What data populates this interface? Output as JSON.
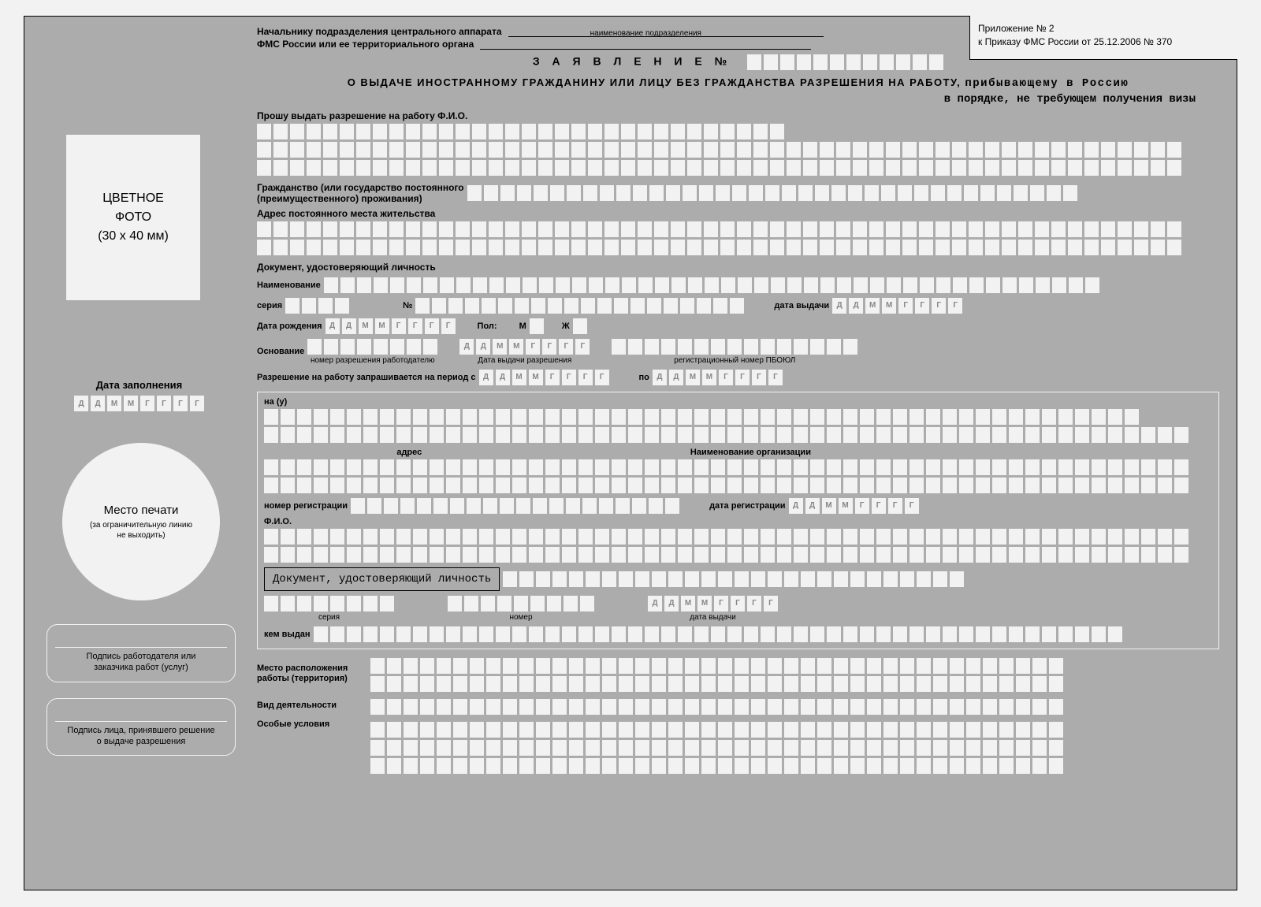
{
  "colors": {
    "bg": "#f2f2f2",
    "form_bg": "#acacac",
    "cell_bg": "#f2f2f2",
    "border": "#000000",
    "light_border": "#f2f2f2",
    "hint_text": "#888888"
  },
  "attachment": {
    "line1": "Приложение № 2",
    "line2": "к Приказу ФМС России от 25.12.2006 № 370"
  },
  "header": {
    "line1": "Начальнику подразделения центрального аппарата",
    "line2": "ФМС России или ее территориального органа",
    "sub2": "наименование подразделения"
  },
  "title": {
    "text": "З А Я В Л Е Н И Е   №",
    "num_cells": 12
  },
  "subtitle1a": "О ВЫДАЧЕ ИНОСТРАННОМУ ГРАЖДАНИНУ ИЛИ ЛИЦУ БЕЗ ГРАЖДАНСТВА РАЗРЕШЕНИЯ НА РАБОТУ,",
  "subtitle1b": "прибывающему в Россию",
  "subtitle2": "в порядке, не требующем получения визы",
  "photo": {
    "l1": "ЦВЕТНОЕ",
    "l2": "ФОТО",
    "l3": "(30 x 40 мм)"
  },
  "fill_date": {
    "label": "Дата заполнения",
    "pattern": [
      "Д",
      "Д",
      "М",
      "М",
      "Г",
      "Г",
      "Г",
      "Г"
    ]
  },
  "seal": {
    "title": "Место печати",
    "sub": "(за ограничительную линию\nне выходить)"
  },
  "sig1": "Подпись работодателя или\nзаказчика работ (услуг)",
  "sig2": "Подпись лица, принявшего решение\nо выдаче разрешения",
  "labels": {
    "request": "Прошу выдать разрешение на работу  Ф.И.О.",
    "citizenship": "Гражданство (или государство постоянного\n(преимущественного) проживания)",
    "address": "Адрес постоянного места жительства",
    "id_doc": "Документ, удостоверяющий личность",
    "name": "Наименование",
    "series": "серия",
    "number": "№",
    "issue_date": "дата выдачи",
    "birth_date": "Дата рождения",
    "sex": "Пол:",
    "male": "М",
    "female": "Ж",
    "basis": "Основание",
    "basis_sub1": "номер разрешения работодателю",
    "basis_sub2": "Дата выдачи разрешения",
    "basis_sub3": "регистрационный номер ПБОЮЛ",
    "period": "Разрешение на работу запрашивается на период    с",
    "period_to": "по",
    "na_u": "на (у)",
    "org_addr": "адрес",
    "org_name": "Наименование организации",
    "reg_num": "номер регистрации",
    "reg_date": "дата регистрации",
    "fio": "Ф.И.О.",
    "doc_id_box": "Документ, удостоверяющий личность",
    "doc_series": "серия",
    "doc_number": "номер",
    "doc_issue": "дата выдачи",
    "issued_by": "кем выдан",
    "work_place": "Место расположения\nработы (территория)",
    "activity": "Вид деятельности",
    "special": "Особые условия"
  },
  "date_pattern": [
    "Д",
    "Д",
    "М",
    "М",
    "Г",
    "Г",
    "Г",
    "Г"
  ],
  "cell_rows": {
    "fio_r1": 32,
    "fio_r2": 56,
    "fio_r3": 56,
    "citizenship": 37,
    "addr_r": 56,
    "addr_rows": 2,
    "id_name": 47,
    "series": 4,
    "number": 20,
    "basis_num": 8,
    "basis_reg": 15,
    "na_u_r1": 53,
    "na_u_r2": 56,
    "org_r": 56,
    "org_rows": 2,
    "reg_num": 20,
    "fio2_r": 56,
    "fio2_rows": 2,
    "doc_tail": 28,
    "doc_row2_a": 8,
    "doc_row2_h": 9,
    "issued_by": 49,
    "work_r": 42,
    "work_rows": 2,
    "activity_r": 42,
    "activity_rows": 1,
    "special_r": 42,
    "special_rows": 3
  }
}
